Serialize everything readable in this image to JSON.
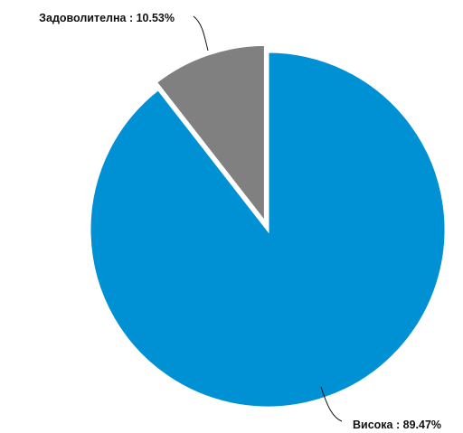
{
  "chart_data": {
    "type": "pie",
    "slices": [
      {
        "label": "Висока",
        "value": 89.47,
        "text": "Висока : 89.47%",
        "color": "#0090d4"
      },
      {
        "label": "Задоволителна",
        "value": 10.53,
        "text": "Задоволителна : 10.53%",
        "color": "#808080"
      }
    ],
    "legend": "none"
  }
}
